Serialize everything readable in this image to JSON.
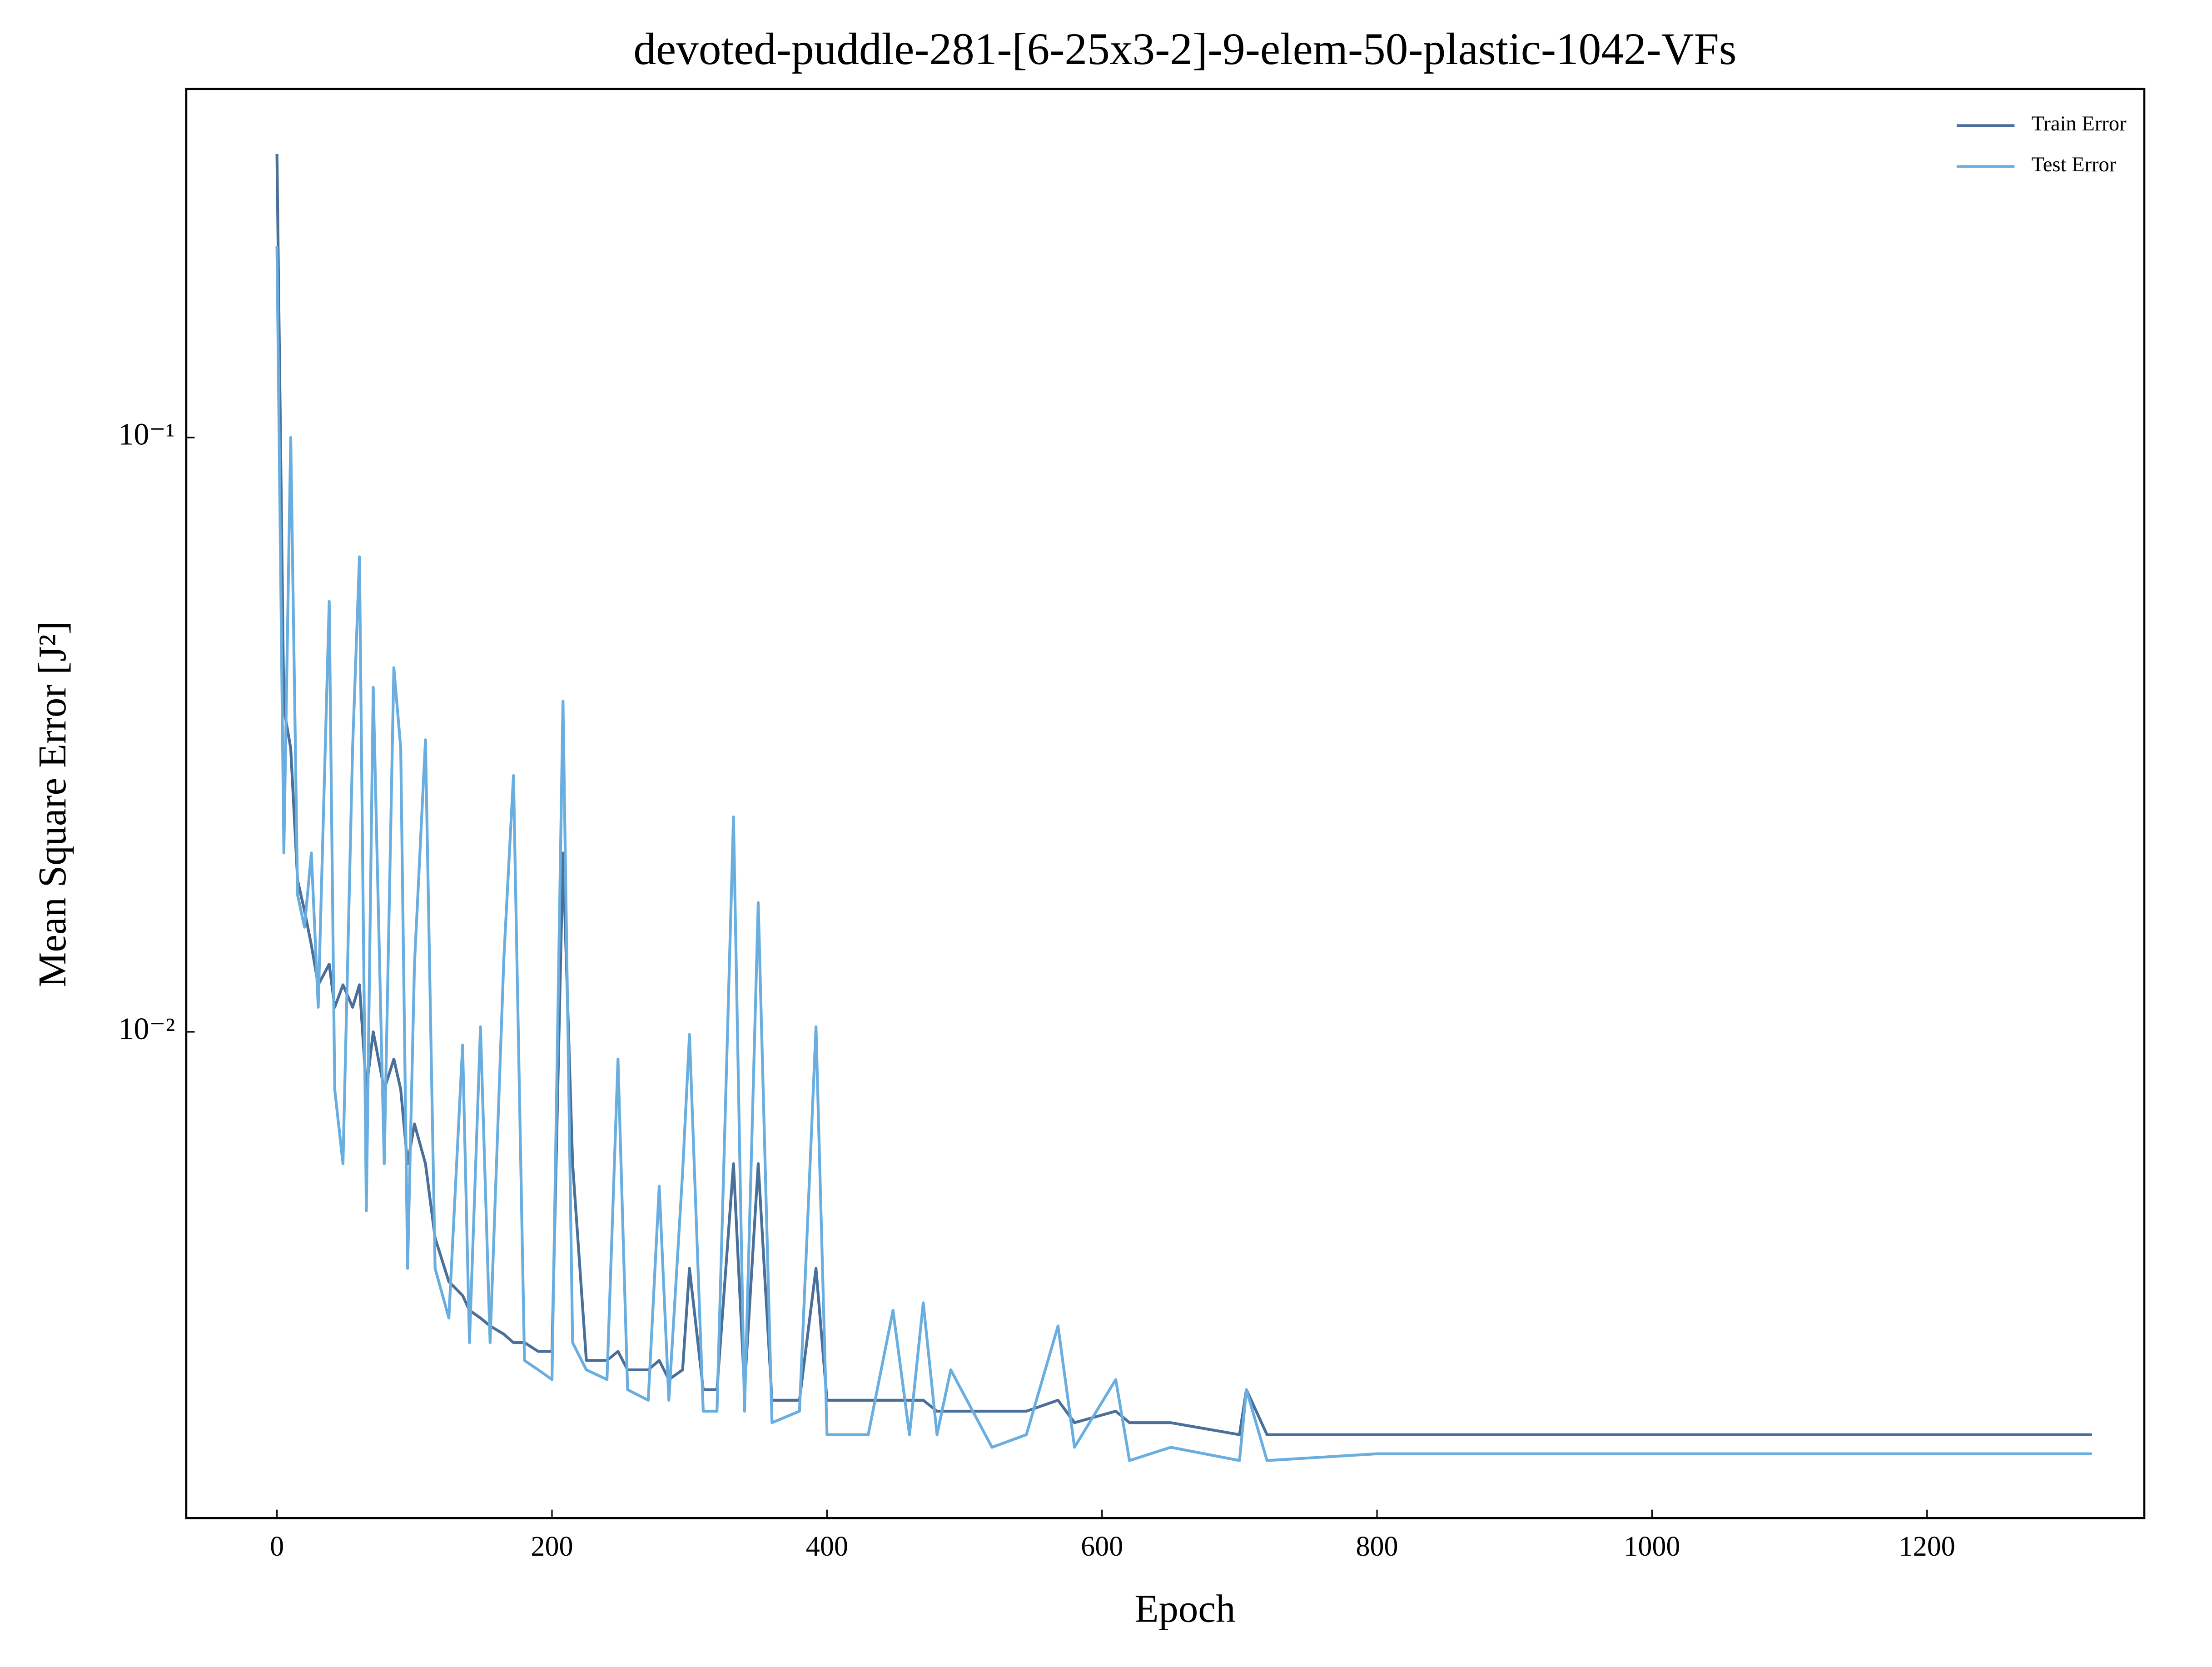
{
  "chart_data": {
    "type": "line",
    "title": "devoted-puddle-281-[6-25x3-2]-9-elem-50-plastic-1042-VFs",
    "x_label": "Epoch",
    "y_label": "Mean Square Error [J²]",
    "yscale": "log",
    "legend": "upper right",
    "x": [
      0,
      5,
      10,
      15,
      20,
      25,
      30,
      38,
      42,
      48,
      55,
      60,
      65,
      70,
      78,
      85,
      90,
      95,
      100,
      108,
      115,
      125,
      135,
      140,
      148,
      155,
      165,
      172,
      180,
      190,
      200,
      208,
      215,
      225,
      240,
      248,
      255,
      270,
      278,
      285,
      295,
      300,
      310,
      320,
      332,
      340,
      350,
      360,
      380,
      392,
      400,
      430,
      448,
      460,
      470,
      480,
      490,
      520,
      545,
      568,
      580,
      610,
      620,
      650,
      700,
      705,
      720,
      800,
      1000,
      1320
    ],
    "series": [
      {
        "name": "Train Error",
        "color": "#4a6f99",
        "values": [
          0.3,
          0.035,
          0.03,
          0.018,
          0.016,
          0.014,
          0.012,
          0.013,
          0.011,
          0.012,
          0.011,
          0.012,
          0.008,
          0.01,
          0.008,
          0.009,
          0.008,
          0.006,
          0.007,
          0.006,
          0.0045,
          0.0038,
          0.0036,
          0.0034,
          0.0033,
          0.0032,
          0.0031,
          0.003,
          0.003,
          0.0029,
          0.0029,
          0.02,
          0.006,
          0.0028,
          0.0028,
          0.0029,
          0.0027,
          0.0027,
          0.0028,
          0.0026,
          0.0027,
          0.004,
          0.0025,
          0.0025,
          0.006,
          0.0025,
          0.006,
          0.0024,
          0.0024,
          0.004,
          0.0024,
          0.0024,
          0.0024,
          0.0024,
          0.0024,
          0.0023,
          0.0023,
          0.0023,
          0.0023,
          0.0024,
          0.0022,
          0.0023,
          0.0022,
          0.0022,
          0.0021,
          0.0025,
          0.0021,
          0.0021,
          0.0021,
          0.0021
        ]
      },
      {
        "name": "Test Error",
        "color": "#6aaee0",
        "values": [
          0.21,
          0.02,
          0.1,
          0.017,
          0.015,
          0.02,
          0.011,
          0.053,
          0.008,
          0.006,
          0.03,
          0.063,
          0.005,
          0.038,
          0.006,
          0.041,
          0.03,
          0.004,
          0.013,
          0.031,
          0.004,
          0.0033,
          0.0095,
          0.003,
          0.0102,
          0.003,
          0.0133,
          0.027,
          0.0028,
          0.0027,
          0.0026,
          0.036,
          0.003,
          0.0027,
          0.0026,
          0.009,
          0.0025,
          0.0024,
          0.0055,
          0.0024,
          0.0058,
          0.0099,
          0.0023,
          0.0023,
          0.023,
          0.0023,
          0.0165,
          0.0022,
          0.0023,
          0.0102,
          0.0021,
          0.0021,
          0.0034,
          0.0021,
          0.0035,
          0.0021,
          0.0027,
          0.002,
          0.0021,
          0.0032,
          0.002,
          0.0026,
          0.0019,
          0.002,
          0.0019,
          0.0025,
          0.0019,
          0.00195,
          0.00195,
          0.00195
        ]
      }
    ],
    "xlim": [
      -66,
      1358
    ],
    "xticks": [
      0,
      200,
      400,
      600,
      800,
      1000,
      1200
    ],
    "ylim": [
      0.00152,
      0.386
    ],
    "yticks": [
      {
        "value": 0.01,
        "label": "10⁻²"
      },
      {
        "value": 0.1,
        "label": "10⁻¹"
      }
    ]
  }
}
